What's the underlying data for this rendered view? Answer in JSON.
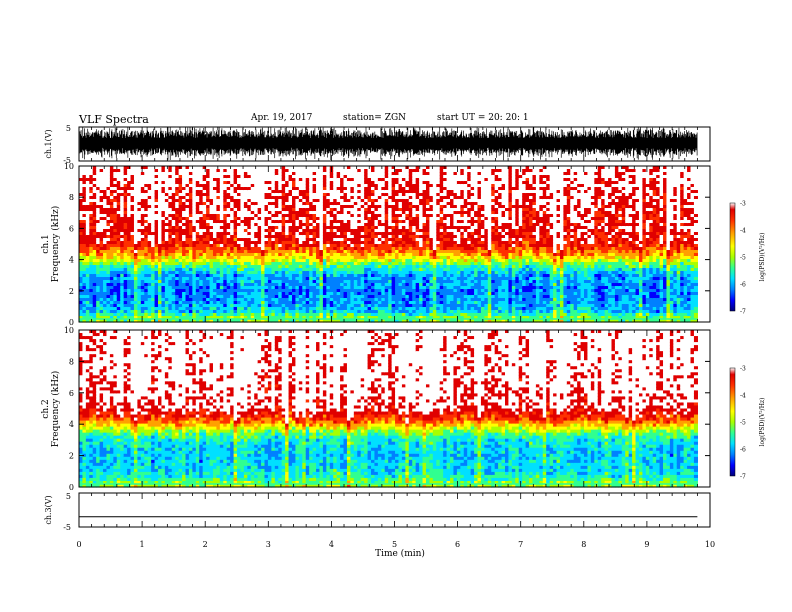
{
  "header": {
    "title": "VLF Spectra",
    "date": "Apr. 19, 2017",
    "station": "station= ZGN",
    "start": "start  UT  =   20: 20: 1"
  },
  "chart_data": [
    {
      "type": "line",
      "panel": "ch1-waveform",
      "ylabel": "ch.1(V)",
      "ylim": [
        -5,
        5
      ],
      "yticks": [
        "5",
        "-5"
      ],
      "xlim": [
        0,
        10
      ],
      "trace_color": "#000000"
    },
    {
      "type": "heatmap",
      "panel": "ch1-spectrogram",
      "ylabel": "ch.1\nFrequency (kHz)",
      "ylim": [
        0,
        10
      ],
      "yticks": [
        "10",
        "8",
        "6",
        "4",
        "2",
        "0"
      ],
      "xlim": [
        0,
        9.8
      ],
      "colorbar": {
        "label": "log(PSD)(V²/Hz)",
        "min": -7,
        "max": -3,
        "ticks": [
          "-3",
          "-4",
          "-5",
          "-6",
          "-7"
        ]
      },
      "profile": [
        [
          0,
          -5.2
        ],
        [
          0.4,
          -5.2
        ],
        [
          0.6,
          -5.8
        ],
        [
          1.0,
          -6.0
        ],
        [
          2.0,
          -6.2
        ],
        [
          3.0,
          -6.0
        ],
        [
          3.6,
          -5.4
        ],
        [
          4.2,
          -4.4
        ],
        [
          5.0,
          -3.5
        ],
        [
          6.0,
          -3.3
        ],
        [
          8.0,
          -3.2
        ],
        [
          10.0,
          -3.0
        ]
      ]
    },
    {
      "type": "heatmap",
      "panel": "ch2-spectrogram",
      "ylabel": "ch.2\nFrequency (kHz)",
      "ylim": [
        0,
        10
      ],
      "yticks": [
        "10",
        "8",
        "6",
        "4",
        "2",
        "0"
      ],
      "xlim": [
        0,
        9.8
      ],
      "colorbar": {
        "label": "log(PSD)(V²/Hz)",
        "min": -7,
        "max": -3,
        "ticks": [
          "-3",
          "-4",
          "-5",
          "-6",
          "-7"
        ]
      },
      "profile": [
        [
          0,
          -5.0
        ],
        [
          0.3,
          -5.2
        ],
        [
          0.6,
          -5.6
        ],
        [
          1.0,
          -5.8
        ],
        [
          2.0,
          -5.9
        ],
        [
          3.0,
          -5.7
        ],
        [
          3.5,
          -5.2
        ],
        [
          4.2,
          -4.0
        ],
        [
          5.0,
          -3.2
        ],
        [
          6.0,
          -3.1
        ],
        [
          8.0,
          -3.0
        ],
        [
          10.0,
          -3.0
        ]
      ]
    },
    {
      "type": "line",
      "panel": "ch3-waveform",
      "ylabel": "ch.3(V)",
      "ylim": [
        -5,
        5
      ],
      "yticks": [
        "5",
        "-5"
      ],
      "x": [
        0,
        9.8
      ],
      "y": [
        -2,
        -2
      ],
      "xlabel": "Time (min)",
      "xlim": [
        0,
        10
      ],
      "xticks": [
        "0",
        "1",
        "2",
        "3",
        "4",
        "5",
        "6",
        "7",
        "8",
        "9",
        "10"
      ],
      "trace_color": "#000000"
    }
  ],
  "colormap": [
    "#00007a",
    "#0000ff",
    "#0080ff",
    "#00e0ff",
    "#30ff90",
    "#a8ff00",
    "#ffff00",
    "#ffa000",
    "#ff3000",
    "#e00000",
    "#ffffff"
  ]
}
